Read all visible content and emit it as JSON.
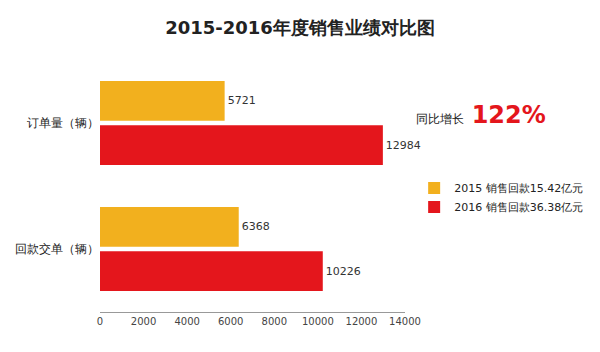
{
  "chart_data": {
    "type": "bar",
    "orientation": "horizontal",
    "title": "2015-2016年度销售业绩对比图",
    "categories": [
      "订单量（辆）",
      "回款交单（辆）"
    ],
    "series": [
      {
        "name": "2015 销售回款15.42亿元",
        "color": "#f2b01e",
        "values": [
          5721,
          6368
        ]
      },
      {
        "name": "2016 销售回款36.38亿元",
        "color": "#e4161c",
        "values": [
          12984,
          10226
        ]
      }
    ],
    "xlim": [
      0,
      14000
    ],
    "xticks": [
      0,
      2000,
      4000,
      6000,
      8000,
      10000,
      12000,
      14000
    ],
    "grid": false,
    "data_labels": true,
    "legend": "right",
    "annotations": [
      "同比增长",
      "122%"
    ]
  }
}
